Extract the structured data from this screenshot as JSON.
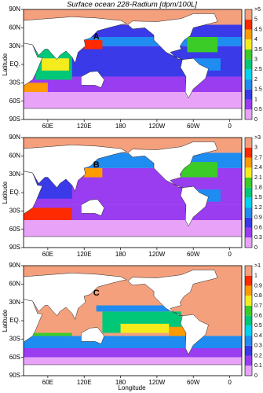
{
  "chart_data": {
    "type": "map",
    "title": "Surface ocean 228-Radium [dpm/100L]",
    "xlabel": "Longitude",
    "ylabel": "Latitude",
    "xlim": [
      20,
      380
    ],
    "ylim": [
      -90,
      90
    ],
    "xticks": [
      {
        "value": 60,
        "label": "60E"
      },
      {
        "value": 120,
        "label": "120E"
      },
      180,
      {
        "value": 240,
        "label": "120W"
      },
      {
        "value": 300,
        "label": "60W"
      },
      {
        "value": 360,
        "label": "0"
      }
    ],
    "yticks": [
      {
        "value": 90,
        "label": "90N"
      },
      {
        "value": 60,
        "label": "60N"
      },
      {
        "value": 30,
        "label": "30N"
      },
      {
        "value": 0,
        "label": "EQ."
      },
      {
        "value": -30,
        "label": "30S"
      },
      {
        "value": -60,
        "label": "60S"
      },
      {
        "value": -90,
        "label": "90S"
      }
    ],
    "colors": [
      "#e8a2f7",
      "#9a3cf0",
      "#3a3ae8",
      "#1e8cf0",
      "#00d2f0",
      "#00c878",
      "#3ccc28",
      "#f4ec1c",
      "#ff9a00",
      "#ff2a00",
      "#f4a07c"
    ],
    "panels": [
      {
        "label": "A",
        "cbar_lim": [
          0,
          5.5
        ],
        "cbar_ticks": [
          0,
          0.5,
          1,
          1.5,
          2,
          2.5,
          3,
          3.5,
          4,
          4.5,
          5,
          {
            "value": 5.5,
            "label": ">5"
          }
        ]
      },
      {
        "label": "B",
        "cbar_lim": [
          0,
          3.3
        ],
        "cbar_ticks": [
          0,
          0.3,
          0.6,
          0.9,
          1.2,
          1.5,
          1.8,
          2.1,
          2.4,
          2.7,
          3,
          {
            "value": 3.3,
            "label": ">3"
          }
        ]
      },
      {
        "label": "C",
        "cbar_lim": [
          0,
          1.1
        ],
        "cbar_ticks": [
          0,
          0.1,
          0.2,
          0.3,
          0.4,
          0.5,
          0.6,
          0.7,
          0.8,
          0.9,
          1,
          {
            "value": 1.1,
            "label": ">1"
          }
        ]
      }
    ]
  }
}
